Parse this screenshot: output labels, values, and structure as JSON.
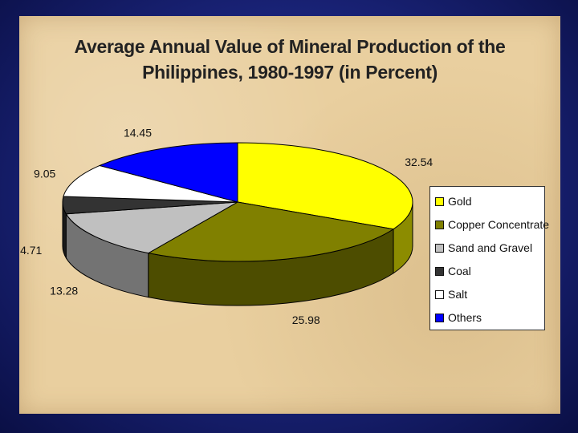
{
  "title_lines": [
    "Average Annual Value of Mineral Production of the",
    "Philippines, 1980-1997 (in Percent)"
  ],
  "chart_data": {
    "type": "pie",
    "title": "Average Annual Value of Mineral Production of the Philippines, 1980-1997 (in Percent)",
    "style": "3d",
    "legend_position": "right",
    "slices": [
      {
        "label": "Gold",
        "value": 32.54,
        "color": "#ffff00",
        "side_color": "#8c8c00"
      },
      {
        "label": "Copper Concentrate",
        "value": 25.98,
        "color": "#808000",
        "side_color": "#4d4d00"
      },
      {
        "label": "Sand and Gravel",
        "value": 13.28,
        "color": "#c0c0c0",
        "side_color": "#737373"
      },
      {
        "label": "Coal",
        "value": 4.71,
        "color": "#333333",
        "side_color": "#1a1a1a"
      },
      {
        "label": "Salt",
        "value": 9.05,
        "color": "#ffffff",
        "side_color": "#999999"
      },
      {
        "label": "Others",
        "value": 14.45,
        "color": "#0000ff",
        "side_color": "#000099"
      }
    ]
  }
}
